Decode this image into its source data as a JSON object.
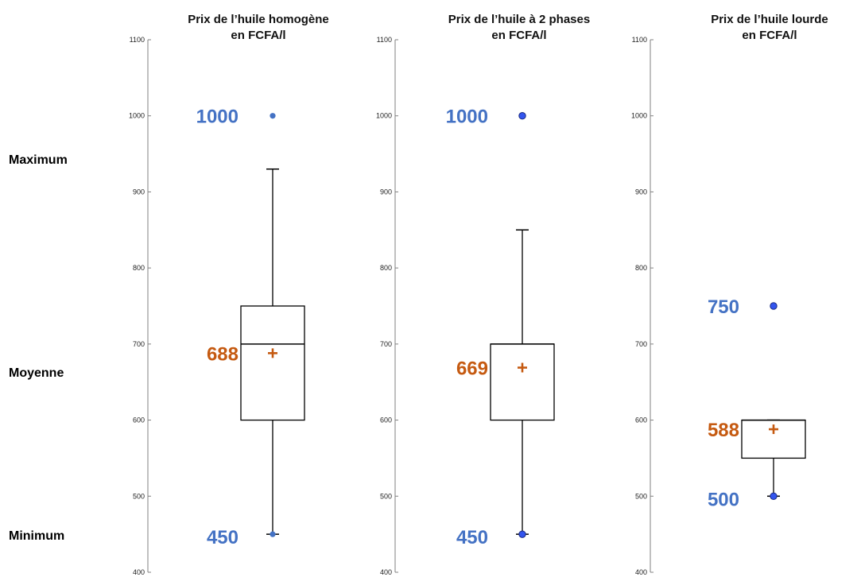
{
  "legend": {
    "maximum": "Maximum",
    "moyenne": "Moyenne",
    "minimum": "Minimum"
  },
  "colors": {
    "blue_label": "#4472c4",
    "orange_label": "#c55a11",
    "point_fill": "#3355ee",
    "mean_marker": "#c55a11",
    "box_stroke": "#000000",
    "axis": "#808080"
  },
  "chart_data": [
    {
      "type": "box",
      "title_lines": [
        "Prix de l’huile homogène",
        "en FCFA/l"
      ],
      "ylim": [
        400,
        1100
      ],
      "yticks": [
        "400",
        "500",
        "600",
        "700",
        "800",
        "900",
        "1000",
        "1100"
      ],
      "box": {
        "q1": 600,
        "median": 700,
        "q3": 750,
        "whisker_low": 450,
        "whisker_high": 930,
        "mean": 688
      },
      "points": [
        {
          "y": 1000,
          "style": "light"
        },
        {
          "y": 450,
          "style": "light"
        }
      ],
      "labels": {
        "max": "1000",
        "mean": "688",
        "min": "450"
      }
    },
    {
      "type": "box",
      "title_lines": [
        "Prix de l’huile à 2 phases",
        "en FCFA/l"
      ],
      "ylim": [
        400,
        1100
      ],
      "yticks": [
        "400",
        "500",
        "600",
        "700",
        "800",
        "900",
        "1000",
        "1100"
      ],
      "box": {
        "q1": 600,
        "median": 700,
        "q3": 700,
        "whisker_low": 450,
        "whisker_high": 850,
        "mean": 669
      },
      "points": [
        {
          "y": 1000,
          "style": "filled"
        },
        {
          "y": 450,
          "style": "filled"
        }
      ],
      "labels": {
        "max": "1000",
        "mean": "669",
        "min": "450"
      }
    },
    {
      "type": "box",
      "title_lines": [
        "Prix de l’huile lourde",
        "en FCFA/l",
        ""
      ],
      "ylim": [
        400,
        1100
      ],
      "yticks": [
        "400",
        "500",
        "600",
        "700",
        "800",
        "900",
        "1000",
        "1100"
      ],
      "box": {
        "q1": 550,
        "median": 600,
        "q3": 600,
        "whisker_low": 500,
        "whisker_high": 600,
        "mean": 588
      },
      "points": [
        {
          "y": 750,
          "style": "filled"
        },
        {
          "y": 500,
          "style": "filled"
        }
      ],
      "labels": {
        "max": "750",
        "mean": "588",
        "min": "500"
      }
    }
  ]
}
